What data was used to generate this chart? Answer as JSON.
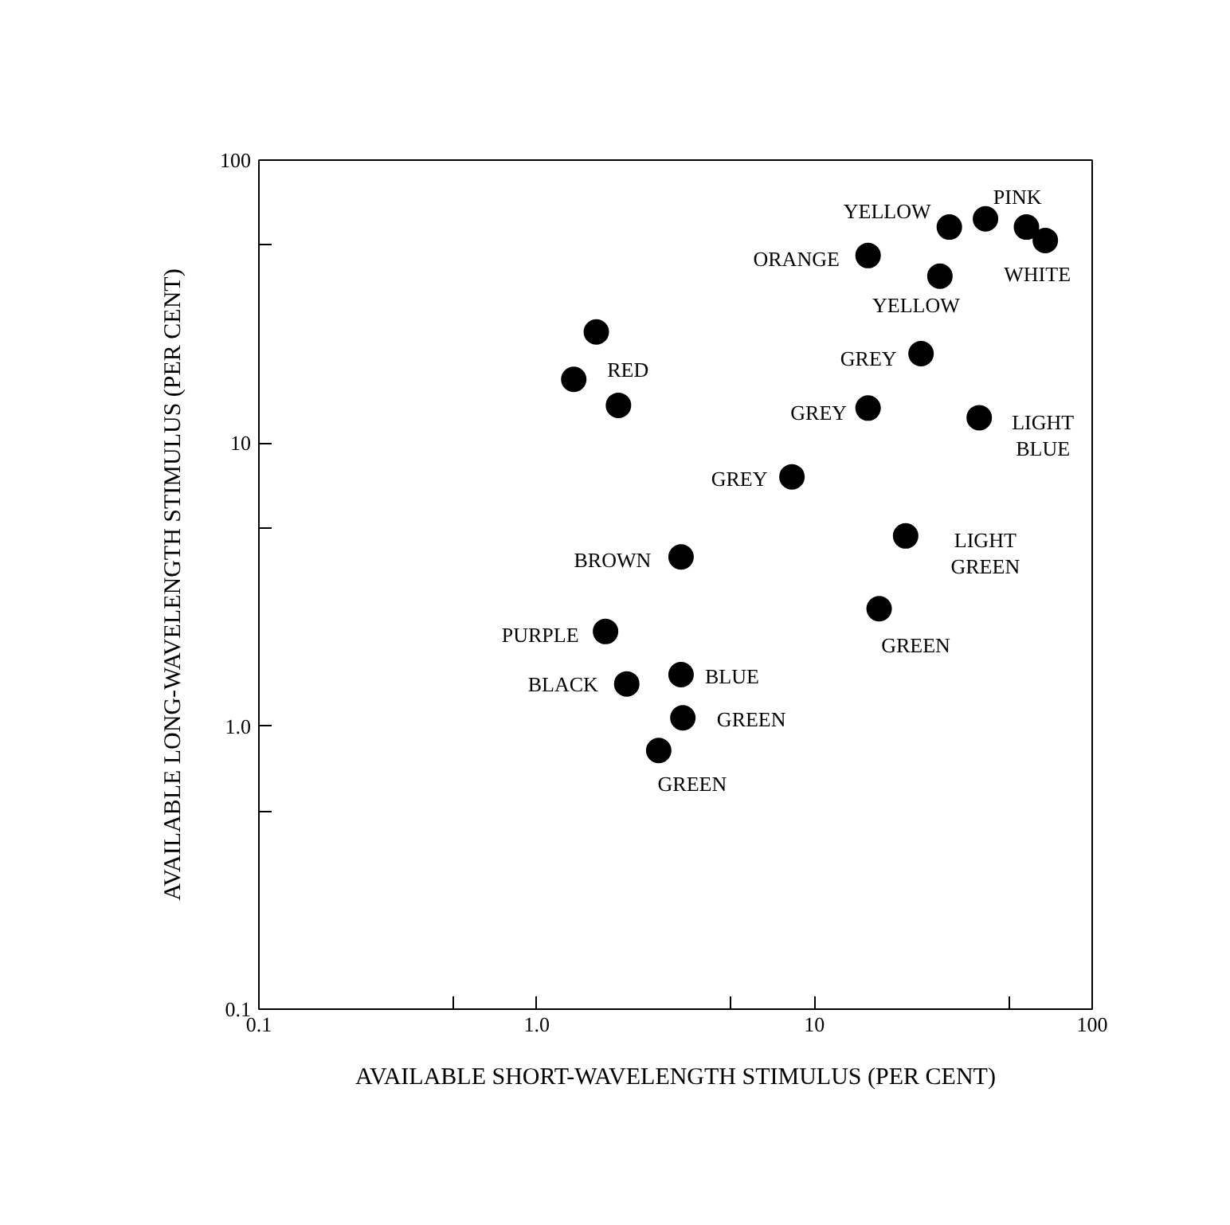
{
  "chart_data": {
    "type": "scatter",
    "xlabel": "AVAILABLE SHORT-WAVELENGTH STIMULUS (PER CENT)",
    "ylabel": "AVAILABLE LONG-WAVELENGTH STIMULUS (PER CENT)",
    "log": "xy",
    "grid": false,
    "marker": "circle",
    "xlim": [
      0.1,
      100
    ],
    "ylim": [
      0.1,
      100
    ],
    "xticks": [
      0.1,
      {
        "value": 0.5,
        "label": null
      },
      {
        "value": 1,
        "label": "1.0"
      },
      {
        "value": 5,
        "label": null
      },
      10,
      {
        "value": 50,
        "label": null
      },
      100
    ],
    "yticks": [
      0.1,
      {
        "value": 0.5,
        "label": null
      },
      {
        "value": 1,
        "label": "1.0"
      },
      {
        "value": 5,
        "label": null
      },
      10,
      {
        "value": 50,
        "label": null
      },
      100
    ],
    "series": [
      {
        "color": "#000000",
        "x": [
          1.64,
          1.36,
          1.97,
          3.31,
          1.77,
          2.11,
          3.31,
          3.36,
          2.75,
          8.3,
          15.6,
          24.2,
          15.6,
          30.6,
          41.3,
          58,
          67.8,
          28.3,
          39.2,
          21.3,
          17.1
        ],
        "values": [
          24.7,
          16.8,
          13.6,
          3.96,
          2.16,
          1.41,
          1.52,
          1.07,
          0.82,
          7.6,
          13.3,
          20.7,
          46,
          58,
          62,
          58,
          52,
          38.9,
          12.3,
          4.7,
          2.6
        ]
      }
    ],
    "annotations": [
      {
        "text": "RED",
        "x": 1.36,
        "y": 16.8
      },
      {
        "text": "BROWN",
        "x": 3.31,
        "y": 3.96
      },
      {
        "text": "PURPLE",
        "x": 1.77,
        "y": 2.16
      },
      {
        "text": "BLACK",
        "x": 2.11,
        "y": 1.41
      },
      {
        "text": "BLUE",
        "x": 3.31,
        "y": 1.52
      },
      {
        "text": "GREEN",
        "x": 3.36,
        "y": 1.07
      },
      {
        "text": "GREEN",
        "x": 2.75,
        "y": 0.82
      },
      {
        "text": "GREY",
        "x": 8.3,
        "y": 7.6
      },
      {
        "text": "GREY",
        "x": 15.6,
        "y": 13.3
      },
      {
        "text": "GREY",
        "x": 24.2,
        "y": 20.7
      },
      {
        "text": "ORANGE",
        "x": 15.6,
        "y": 46
      },
      {
        "text": "YELLOW",
        "x": 30.6,
        "y": 58
      },
      {
        "text": "PINK",
        "x": 41.3,
        "y": 62
      },
      {
        "text": "WHITE",
        "x": 67.8,
        "y": 52
      },
      {
        "text": "YELLOW",
        "x": 28.3,
        "y": 38.9
      },
      {
        "text": "LIGHT\nBLUE",
        "x": 39.2,
        "y": 12.3
      },
      {
        "text": "LIGHT\nGREEN",
        "x": 21.3,
        "y": 4.7
      },
      {
        "text": "GREEN",
        "x": 17.1,
        "y": 2.6
      }
    ]
  }
}
